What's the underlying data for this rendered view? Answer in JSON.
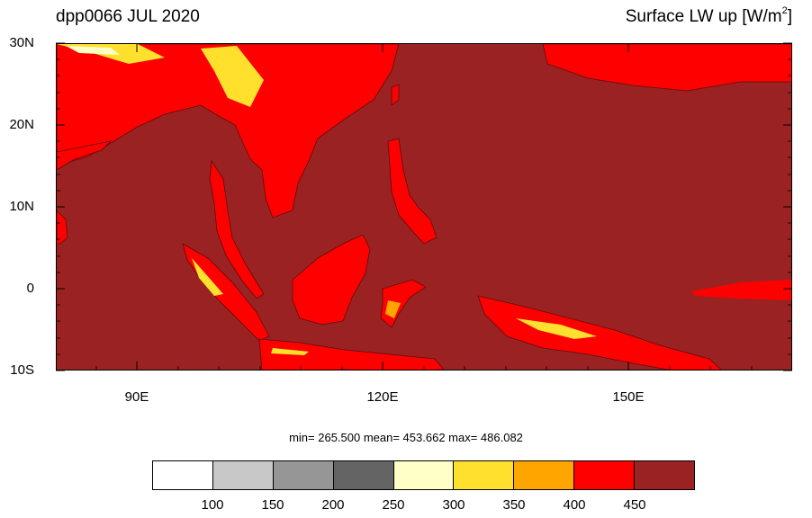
{
  "title_left": "dpp0066 JUL 2020",
  "title_right_prefix": "Surface LW up [W/m",
  "title_right_sup": "2",
  "title_right_suffix": "]",
  "y_axis_labels": [
    "30N",
    "20N",
    "10N",
    "0",
    "10S"
  ],
  "x_axis_labels": [
    "90E",
    "120E",
    "150E"
  ],
  "stats": "min= 265.500  mean= 453.662  max= 486.082",
  "colorbar_colors": [
    "#ffffff",
    "#c8c8c8",
    "#969696",
    "#646464",
    "#ffffc8",
    "#ffe12d",
    "#ffa500",
    "#ff0000",
    "#9b2222"
  ],
  "colorbar_labels": [
    "100",
    "150",
    "200",
    "250",
    "300",
    "350",
    "400",
    "450"
  ],
  "map_colors": {
    "ocean": "#9b2222",
    "land_low": "#ff0000",
    "land_mid": "#ffa500",
    "land_high": "#ffe12d",
    "land_peak": "#ffffc8"
  }
}
